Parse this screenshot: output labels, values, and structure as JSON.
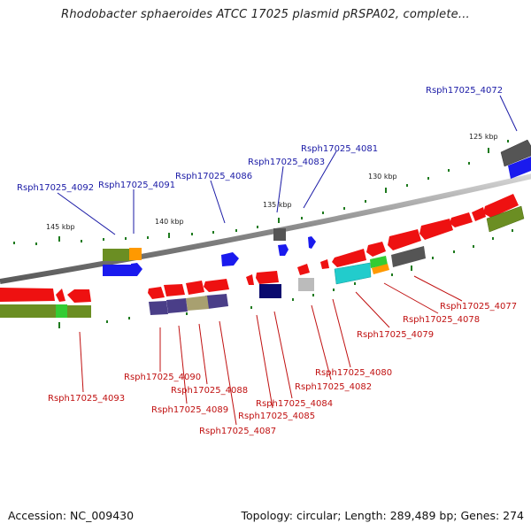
{
  "title": "Rhodobacter sphaeroides ATCC 17025 plasmid pRSPA02, complete...",
  "footer": {
    "accession": "Accession: NC_009430",
    "topology": "Topology: circular; Length: 289,489 bp; Genes: 274"
  },
  "colors": {
    "label_top": "#1a1aa6",
    "label_bottom": "#c01010",
    "backbone": "#8a8a8a",
    "tick": "#1e7a1e"
  },
  "scale_labels": [
    "125 kbp",
    "130 kbp",
    "135 kbp",
    "140 kbp",
    "145 kbp"
  ],
  "gene_labels_top": [
    "Rsph17025_4072",
    "Rsph17025_4081",
    "Rsph17025_4083",
    "Rsph17025_4086",
    "Rsph17025_4091",
    "Rsph17025_4092"
  ],
  "gene_labels_bottom": [
    "Rsph17025_4077",
    "Rsph17025_4078",
    "Rsph17025_4079",
    "Rsph17025_4080",
    "Rsph17025_4082",
    "Rsph17025_4084",
    "Rsph17025_4085",
    "Rsph17025_4087",
    "Rsph17025_4088",
    "Rsph17025_4089",
    "Rsph17025_4090",
    "Rsph17025_4093"
  ]
}
